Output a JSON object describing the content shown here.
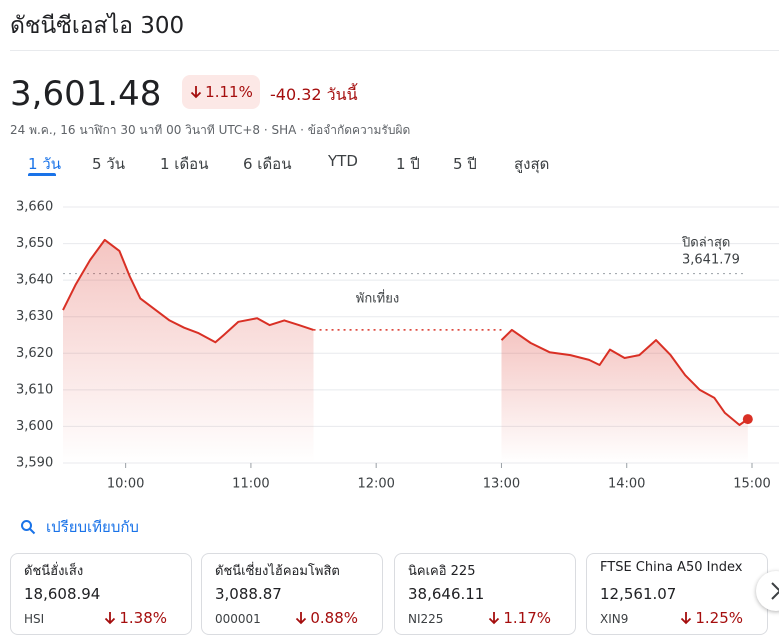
{
  "header": {
    "title": "ดัชนีซีเอสไอ 300",
    "price": "3,601.48",
    "change_percent": "1.11%",
    "change_text": "-40.32 วันนี้",
    "meta": "24 พ.ค., 16 นาฬิกา 30 นาที 00 วินาที UTC+8 · SHA · ข้อจำกัดความรับผิด"
  },
  "tabs": [
    "1 วัน",
    "5 วัน",
    "1 เดือน",
    "6 เดือน",
    "YTD",
    "1 ปี",
    "5 ปี",
    "สูงสุด"
  ],
  "chart_data": {
    "type": "line",
    "x": [
      "9:30",
      "9:36",
      "9:43",
      "9:50",
      "9:57",
      "10:02",
      "10:07",
      "10:14",
      "10:21",
      "10:28",
      "10:35",
      "10:43",
      "10:47",
      "10:54",
      "11:03",
      "11:09",
      "11:16",
      "11:23",
      "11:30",
      "12:00",
      "13:00",
      "13:05",
      "13:14",
      "13:23",
      "13:33",
      "13:42",
      "13:47",
      "13:52",
      "13:59",
      "14:06",
      "14:14",
      "14:21",
      "14:28",
      "14:35",
      "14:42",
      "14:47",
      "14:54",
      "14:58"
    ],
    "series": [
      {
        "name": "ดัชนีซีเอสไอ 300",
        "color": "#d93025",
        "values": [
          3631.8,
          3638.7,
          3645.5,
          3651,
          3648,
          3641,
          3635,
          3632,
          3629,
          3627,
          3625.5,
          3623,
          3625,
          3628.6,
          3629.6,
          3627.7,
          3629,
          3627.7,
          3626.4,
          null,
          3623.6,
          3626.4,
          3622.8,
          3620.3,
          3619.5,
          3618.2,
          3616.8,
          3621,
          3618.7,
          3619.5,
          3623.6,
          3619.5,
          3614,
          3610,
          3607.8,
          3603.7,
          3600.4,
          3602
        ]
      }
    ],
    "xlim": [
      "9:30",
      "15:00"
    ],
    "xticks": [
      "10:00",
      "11:00",
      "12:00",
      "13:00",
      "14:00",
      "15:00"
    ],
    "ylim": [
      3590,
      3660
    ],
    "yticks": [
      {
        "value": 3590,
        "label": "3,590"
      },
      {
        "value": 3600,
        "label": "3,600"
      },
      {
        "value": 3610,
        "label": "3,610"
      },
      {
        "value": 3620,
        "label": "3,620"
      },
      {
        "value": 3630,
        "label": "3,630"
      },
      {
        "value": 3640,
        "label": "3,640"
      },
      {
        "value": 3650,
        "label": "3,650"
      },
      {
        "value": 3660,
        "label": "3,660"
      }
    ],
    "grid": true,
    "previous_close": {
      "label": "ปิดล่าสุด",
      "value": 3641.79,
      "value_label": "3,641.79"
    },
    "annotation": "พักเที่ยง"
  },
  "compare": {
    "label": "เปรียบเทียบกับ",
    "cards": [
      {
        "name": "ดัชนีฮั่งเส็ง",
        "value": "18,608.94",
        "symbol": "HSI",
        "change": "1.38%"
      },
      {
        "name": "ดัชนีเซี่ยงไฮ้คอมโพสิต",
        "value": "3,088.87",
        "symbol": "000001",
        "change": "0.88%"
      },
      {
        "name": "นิคเคอิ 225",
        "value": "38,646.11",
        "symbol": "NI225",
        "change": "1.17%"
      },
      {
        "name": "FTSE China A50 Index",
        "value": "12,561.07",
        "symbol": "XIN9",
        "change": "1.25%"
      }
    ]
  }
}
